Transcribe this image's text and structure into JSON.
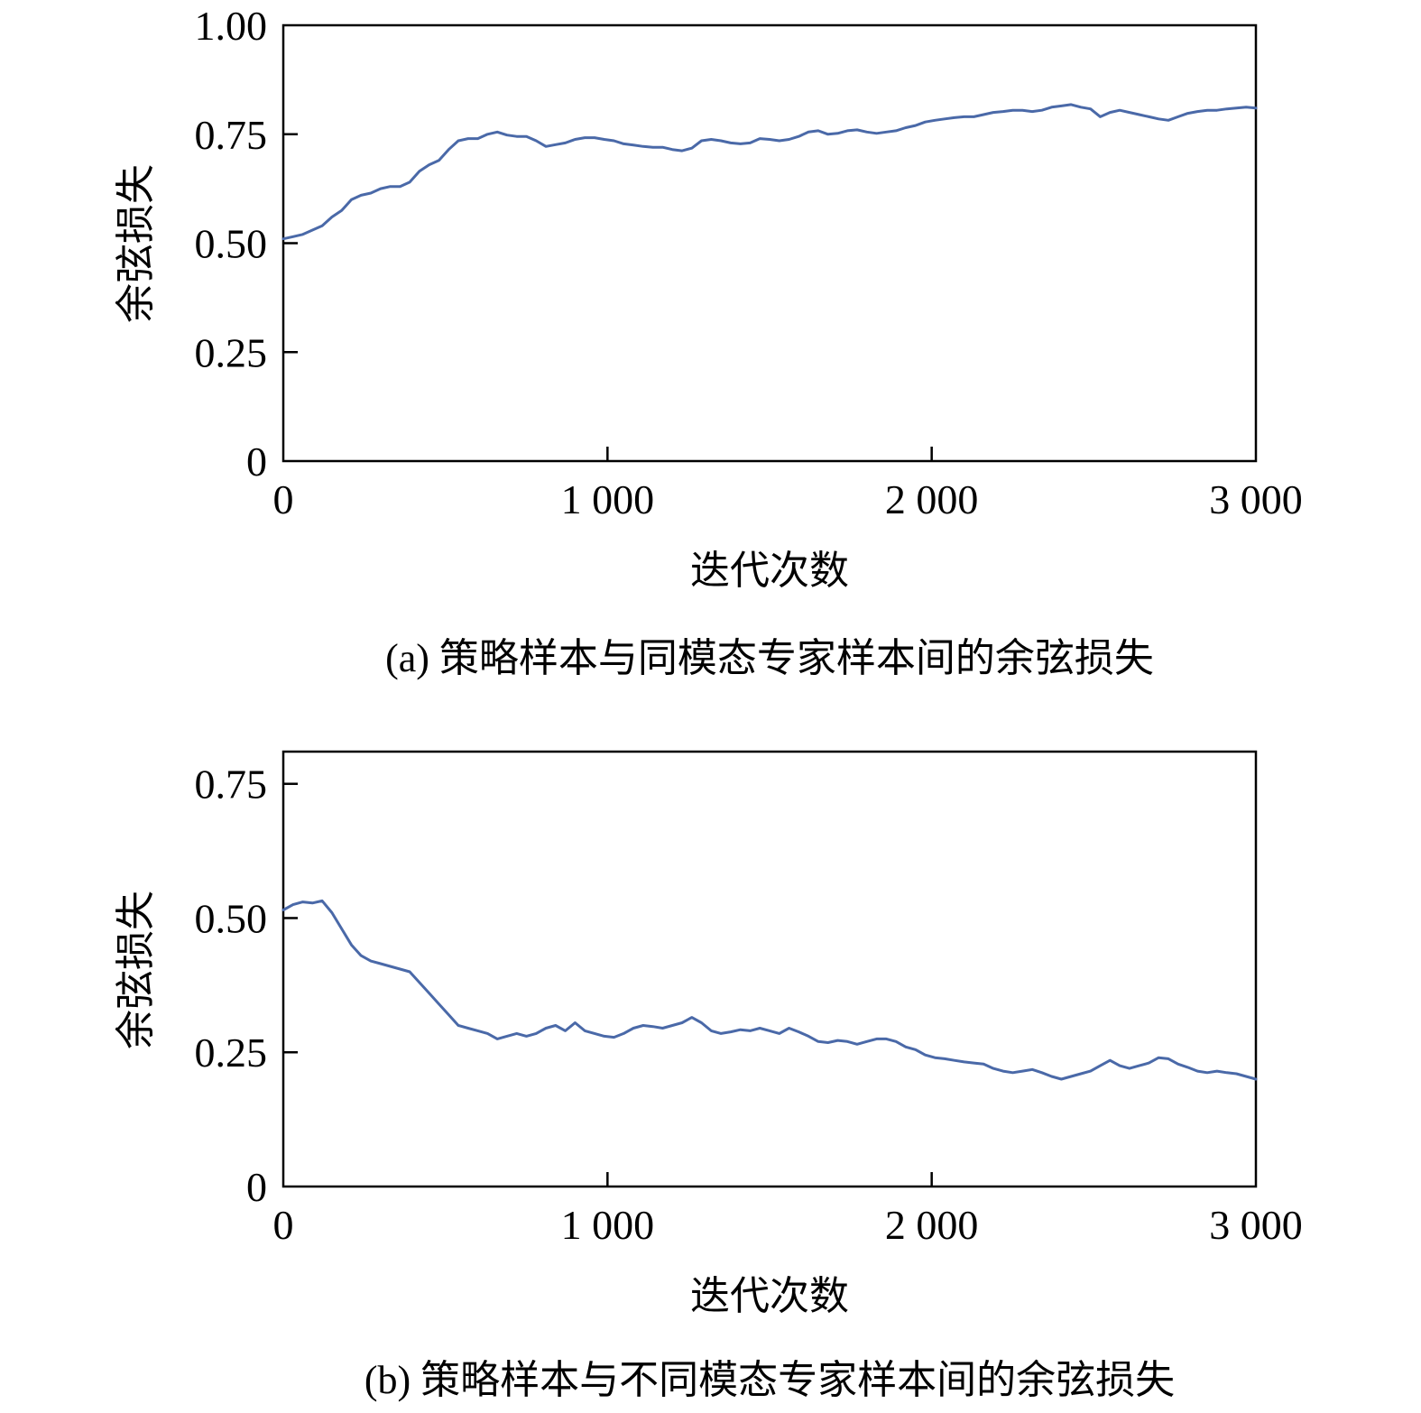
{
  "chart_data": [
    {
      "type": "line",
      "caption_label": "(a)",
      "caption_text": "策略样本与同模态专家样本间的余弦损失",
      "xlabel": "迭代次数",
      "ylabel": "余弦损失",
      "xlim": [
        0,
        3000
      ],
      "ylim": [
        0,
        1.0
      ],
      "xticks": [
        0,
        1000,
        2000,
        3000
      ],
      "xtick_labels": [
        "0",
        "1 000",
        "2 000",
        "3 000"
      ],
      "yticks": [
        0,
        0.25,
        0.5,
        0.75,
        1.0
      ],
      "ytick_labels": [
        "0",
        "0.25",
        "0.50",
        "0.75",
        "1.00"
      ],
      "grid": false,
      "series": [
        {
          "color": "#4a69a8",
          "x": [
            0,
            30,
            60,
            90,
            120,
            150,
            180,
            210,
            240,
            270,
            300,
            330,
            360,
            390,
            420,
            450,
            480,
            510,
            540,
            570,
            600,
            630,
            660,
            690,
            720,
            750,
            780,
            810,
            840,
            870,
            900,
            930,
            960,
            990,
            1020,
            1050,
            1080,
            1110,
            1140,
            1170,
            1200,
            1230,
            1260,
            1290,
            1320,
            1350,
            1380,
            1410,
            1440,
            1470,
            1500,
            1530,
            1560,
            1590,
            1620,
            1650,
            1680,
            1710,
            1740,
            1770,
            1800,
            1830,
            1860,
            1890,
            1920,
            1950,
            1980,
            2010,
            2040,
            2070,
            2100,
            2130,
            2160,
            2190,
            2220,
            2250,
            2280,
            2310,
            2340,
            2370,
            2400,
            2430,
            2460,
            2490,
            2520,
            2550,
            2580,
            2610,
            2640,
            2670,
            2700,
            2730,
            2760,
            2790,
            2820,
            2850,
            2880,
            2910,
            2940,
            2970,
            3000
          ],
          "y": [
            0.51,
            0.515,
            0.52,
            0.53,
            0.54,
            0.56,
            0.575,
            0.6,
            0.61,
            0.615,
            0.625,
            0.63,
            0.63,
            0.64,
            0.665,
            0.68,
            0.69,
            0.715,
            0.735,
            0.74,
            0.74,
            0.75,
            0.755,
            0.748,
            0.745,
            0.745,
            0.735,
            0.722,
            0.726,
            0.73,
            0.738,
            0.742,
            0.742,
            0.738,
            0.735,
            0.728,
            0.725,
            0.722,
            0.72,
            0.72,
            0.715,
            0.712,
            0.718,
            0.735,
            0.738,
            0.735,
            0.73,
            0.728,
            0.73,
            0.74,
            0.738,
            0.735,
            0.738,
            0.745,
            0.755,
            0.758,
            0.75,
            0.752,
            0.758,
            0.76,
            0.755,
            0.752,
            0.755,
            0.758,
            0.765,
            0.77,
            0.778,
            0.782,
            0.785,
            0.788,
            0.79,
            0.79,
            0.795,
            0.8,
            0.802,
            0.805,
            0.805,
            0.802,
            0.805,
            0.812,
            0.815,
            0.818,
            0.812,
            0.808,
            0.79,
            0.8,
            0.805,
            0.8,
            0.795,
            0.79,
            0.785,
            0.782,
            0.79,
            0.798,
            0.802,
            0.805,
            0.805,
            0.808,
            0.81,
            0.812,
            0.81
          ]
        }
      ]
    },
    {
      "type": "line",
      "caption_label": "(b)",
      "caption_text": "策略样本与不同模态专家样本间的余弦损失",
      "xlabel": "迭代次数",
      "ylabel": "余弦损失",
      "xlim": [
        0,
        3000
      ],
      "ylim": [
        0,
        0.81
      ],
      "xticks": [
        0,
        1000,
        2000,
        3000
      ],
      "xtick_labels": [
        "0",
        "1 000",
        "2 000",
        "3 000"
      ],
      "yticks": [
        0,
        0.25,
        0.5,
        0.75
      ],
      "ytick_labels": [
        "0",
        "0.25",
        "0.50",
        "0.75"
      ],
      "grid": false,
      "series": [
        {
          "color": "#4a69a8",
          "x": [
            0,
            30,
            60,
            90,
            120,
            150,
            180,
            210,
            240,
            270,
            300,
            330,
            360,
            390,
            420,
            450,
            480,
            510,
            540,
            570,
            600,
            630,
            660,
            690,
            720,
            750,
            780,
            810,
            840,
            870,
            900,
            930,
            960,
            990,
            1020,
            1050,
            1080,
            1110,
            1140,
            1170,
            1200,
            1230,
            1260,
            1290,
            1320,
            1350,
            1380,
            1410,
            1440,
            1470,
            1500,
            1530,
            1560,
            1590,
            1620,
            1650,
            1680,
            1710,
            1740,
            1770,
            1800,
            1830,
            1860,
            1890,
            1920,
            1950,
            1980,
            2010,
            2040,
            2070,
            2100,
            2130,
            2160,
            2190,
            2220,
            2250,
            2280,
            2310,
            2340,
            2370,
            2400,
            2430,
            2460,
            2490,
            2520,
            2550,
            2580,
            2610,
            2640,
            2670,
            2700,
            2730,
            2760,
            2790,
            2820,
            2850,
            2880,
            2910,
            2940,
            2970,
            3000
          ],
          "y": [
            0.515,
            0.525,
            0.53,
            0.528,
            0.532,
            0.51,
            0.48,
            0.45,
            0.43,
            0.42,
            0.415,
            0.41,
            0.405,
            0.4,
            0.38,
            0.36,
            0.34,
            0.32,
            0.3,
            0.295,
            0.29,
            0.285,
            0.275,
            0.28,
            0.285,
            0.28,
            0.285,
            0.295,
            0.3,
            0.29,
            0.305,
            0.29,
            0.285,
            0.28,
            0.278,
            0.285,
            0.295,
            0.3,
            0.298,
            0.295,
            0.3,
            0.305,
            0.315,
            0.305,
            0.29,
            0.285,
            0.288,
            0.292,
            0.29,
            0.295,
            0.29,
            0.285,
            0.295,
            0.288,
            0.28,
            0.27,
            0.268,
            0.272,
            0.27,
            0.265,
            0.27,
            0.275,
            0.275,
            0.27,
            0.26,
            0.255,
            0.245,
            0.24,
            0.238,
            0.235,
            0.232,
            0.23,
            0.228,
            0.22,
            0.215,
            0.212,
            0.215,
            0.218,
            0.212,
            0.205,
            0.2,
            0.205,
            0.21,
            0.215,
            0.225,
            0.235,
            0.225,
            0.22,
            0.225,
            0.23,
            0.24,
            0.238,
            0.228,
            0.222,
            0.215,
            0.212,
            0.215,
            0.212,
            0.21,
            0.205,
            0.2
          ]
        }
      ]
    }
  ]
}
